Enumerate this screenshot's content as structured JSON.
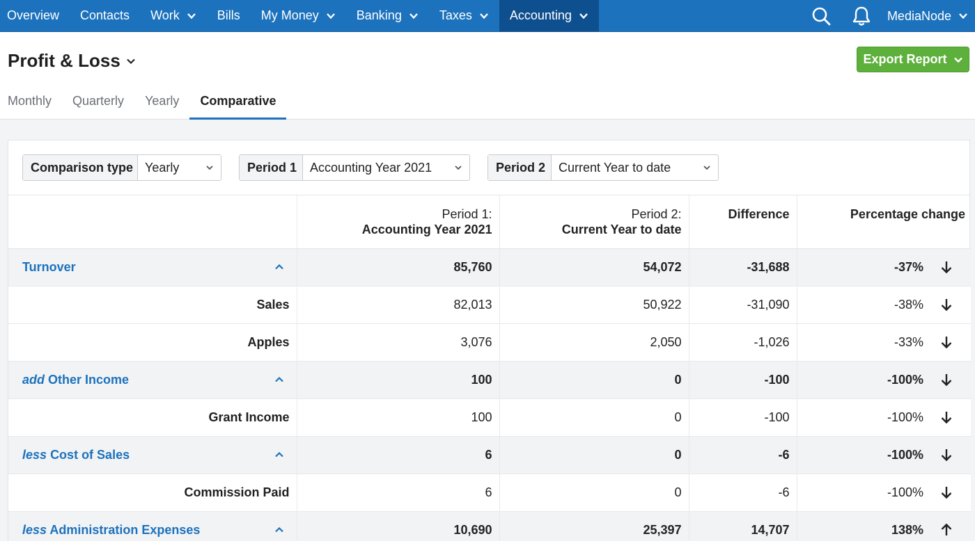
{
  "nav": {
    "items": [
      {
        "label": "Overview",
        "dropdown": false
      },
      {
        "label": "Contacts",
        "dropdown": false
      },
      {
        "label": "Work",
        "dropdown": true
      },
      {
        "label": "Bills",
        "dropdown": false
      },
      {
        "label": "My Money",
        "dropdown": true
      },
      {
        "label": "Banking",
        "dropdown": true
      },
      {
        "label": "Taxes",
        "dropdown": true
      },
      {
        "label": "Accounting",
        "dropdown": true,
        "active": true
      }
    ],
    "user": "MediaNode",
    "icons": [
      "search-icon",
      "bell-icon"
    ]
  },
  "page": {
    "title": "Profit & Loss",
    "export_label": "Export Report"
  },
  "tabs": [
    {
      "label": "Monthly"
    },
    {
      "label": "Quarterly"
    },
    {
      "label": "Yearly"
    },
    {
      "label": "Comparative",
      "active": true
    }
  ],
  "controls": {
    "comparison_type": {
      "label": "Comparison type",
      "value": "Yearly"
    },
    "period1": {
      "label": "Period 1",
      "value": "Accounting Year 2021"
    },
    "period2": {
      "label": "Period 2",
      "value": "Current Year to date"
    }
  },
  "table": {
    "headers": {
      "period1_line1": "Period 1:",
      "period1_line2": "Accounting Year 2021",
      "period2_line1": "Period 2:",
      "period2_line2": "Current Year to date",
      "difference": "Difference",
      "pct_change": "Percentage change"
    },
    "rows": [
      {
        "type": "section",
        "prefix": "",
        "name": "Turnover",
        "p1": "85,760",
        "p2": "54,072",
        "diff": "-31,688",
        "pct": "-37%",
        "trend": "down"
      },
      {
        "type": "detail",
        "name": "Sales",
        "p1": "82,013",
        "p2": "50,922",
        "diff": "-31,090",
        "pct": "-38%",
        "trend": "down"
      },
      {
        "type": "detail",
        "name": "Apples",
        "p1": "3,076",
        "p2": "2,050",
        "diff": "-1,026",
        "pct": "-33%",
        "trend": "down"
      },
      {
        "type": "section",
        "prefix": "add",
        "name": "Other Income",
        "p1": "100",
        "p2": "0",
        "diff": "-100",
        "pct": "-100%",
        "trend": "down"
      },
      {
        "type": "detail",
        "name": "Grant Income",
        "p1": "100",
        "p2": "0",
        "diff": "-100",
        "pct": "-100%",
        "trend": "down"
      },
      {
        "type": "section",
        "prefix": "less",
        "name": "Cost of Sales",
        "p1": "6",
        "p2": "0",
        "diff": "-6",
        "pct": "-100%",
        "trend": "down"
      },
      {
        "type": "detail",
        "name": "Commission Paid",
        "p1": "6",
        "p2": "0",
        "diff": "-6",
        "pct": "-100%",
        "trend": "down"
      },
      {
        "type": "section",
        "prefix": "less",
        "name": "Administration Expenses",
        "p1": "10,690",
        "p2": "25,397",
        "diff": "14,707",
        "pct": "138%",
        "trend": "up"
      }
    ]
  },
  "colors": {
    "nav_bg": "#1c72bd",
    "nav_active": "#0e4f8f",
    "link": "#1c72bd",
    "export_btn": "#5db03b"
  }
}
